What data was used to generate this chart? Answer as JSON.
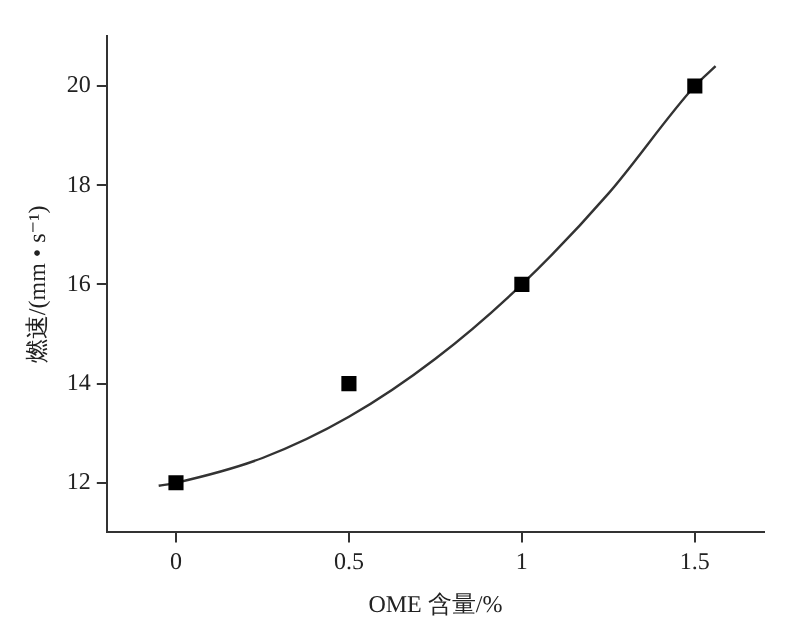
{
  "chart_data": {
    "type": "scatter",
    "xlabel": "OME 含量/%",
    "ylabel": "燃速/(mm • s⁻¹)",
    "xlim": [
      -0.2,
      1.7
    ],
    "ylim": [
      11,
      21
    ],
    "xticks": [
      0,
      0.5,
      1,
      1.5
    ],
    "yticks": [
      12,
      14,
      16,
      18,
      20
    ],
    "grid": false,
    "legend": false,
    "series": [
      {
        "type": "scatter",
        "color": "#000000",
        "marker": "square",
        "x": [
          0,
          0.5,
          1,
          1.5
        ],
        "values": [
          12,
          14,
          16,
          20
        ]
      },
      {
        "type": "line",
        "color": "#333333",
        "marker": "none",
        "line_style": "solid",
        "x": [
          -0.05,
          0,
          0.25,
          0.5,
          0.75,
          1,
          1.25,
          1.5,
          1.56
        ],
        "values": [
          11.94,
          12,
          12.5,
          13.33,
          14.5,
          16,
          17.83,
          20,
          20.4
        ]
      }
    ]
  }
}
